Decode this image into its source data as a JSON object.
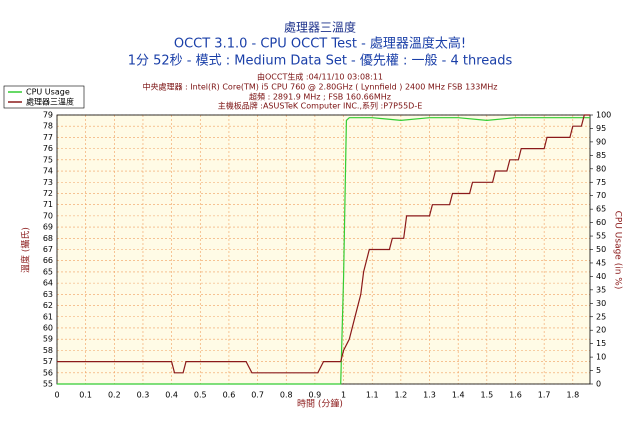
{
  "chart_data": {
    "type": "line",
    "title": "處理器三溫度",
    "subtitle": "OCCT 3.1.0 - CPU OCCT Test - 處理器溫度太高!",
    "subtitle2": "1分 52秒 - 模式 : Medium Data Set - 優先權 : 一般 - 4 threads",
    "info": [
      "由OCCT生成 :04/11/10 03:08:11",
      "中央處理器 : Intel(R) Core(TM) i5 CPU 760 @ 2.80GHz ( Lynnfield ) 2400 MHz FSB 133MHz",
      "超頻 : 2891.9 MHz ; FSB 160.66MHz",
      "主機板品牌 :ASUSTeK Computer INC.,系列 :P7P55D-E"
    ],
    "xlabel": "時間 (分鐘)",
    "ylabel": "溫度 (攝氏)",
    "y2label": "CPU Usage (in %)",
    "xlim": [
      0,
      1.86
    ],
    "ylim": [
      55,
      79
    ],
    "y2lim": [
      0,
      100
    ],
    "xticks": [
      0,
      0.1,
      0.2,
      0.3,
      0.4,
      0.5,
      0.6,
      0.7,
      0.8,
      0.9,
      1,
      1.1,
      1.2,
      1.3,
      1.4,
      1.5,
      1.6,
      1.7,
      1.8
    ],
    "yticks": [
      55,
      56,
      57,
      58,
      59,
      60,
      61,
      62,
      63,
      64,
      65,
      66,
      67,
      68,
      69,
      70,
      71,
      72,
      73,
      74,
      75,
      76,
      77,
      78,
      79
    ],
    "y2ticks": [
      0,
      5,
      10,
      15,
      20,
      25,
      30,
      35,
      40,
      45,
      50,
      55,
      60,
      65,
      70,
      75,
      80,
      85,
      90,
      95,
      100
    ],
    "grid": true,
    "series": [
      {
        "name": "CPU Usage",
        "color": "#33cc33",
        "axis": "y2",
        "x": [
          0,
          0.99,
          1.0,
          1.01,
          1.02,
          1.1,
          1.2,
          1.3,
          1.4,
          1.5,
          1.6,
          1.7,
          1.8,
          1.86
        ],
        "values": [
          0,
          0,
          40,
          98,
          99,
          99,
          98,
          99,
          99,
          98,
          99,
          99,
          99,
          99
        ]
      },
      {
        "name": "處理器三溫度",
        "color": "#8b1a1a",
        "axis": "y",
        "x": [
          0,
          0.4,
          0.41,
          0.44,
          0.45,
          0.66,
          0.68,
          0.91,
          0.93,
          0.99,
          1.0,
          1.02,
          1.04,
          1.06,
          1.07,
          1.09,
          1.1,
          1.16,
          1.17,
          1.21,
          1.22,
          1.3,
          1.31,
          1.37,
          1.38,
          1.44,
          1.45,
          1.52,
          1.53,
          1.57,
          1.58,
          1.61,
          1.62,
          1.7,
          1.71,
          1.79,
          1.8,
          1.83,
          1.84,
          1.86
        ],
        "values": [
          57,
          57,
          56,
          56,
          57,
          57,
          56,
          56,
          57,
          57,
          58,
          59,
          61,
          63,
          65,
          67,
          67,
          67,
          68,
          68,
          70,
          70,
          71,
          71,
          72,
          72,
          73,
          73,
          74,
          74,
          75,
          75,
          76,
          76,
          77,
          77,
          78,
          78,
          79,
          79
        ]
      }
    ]
  }
}
